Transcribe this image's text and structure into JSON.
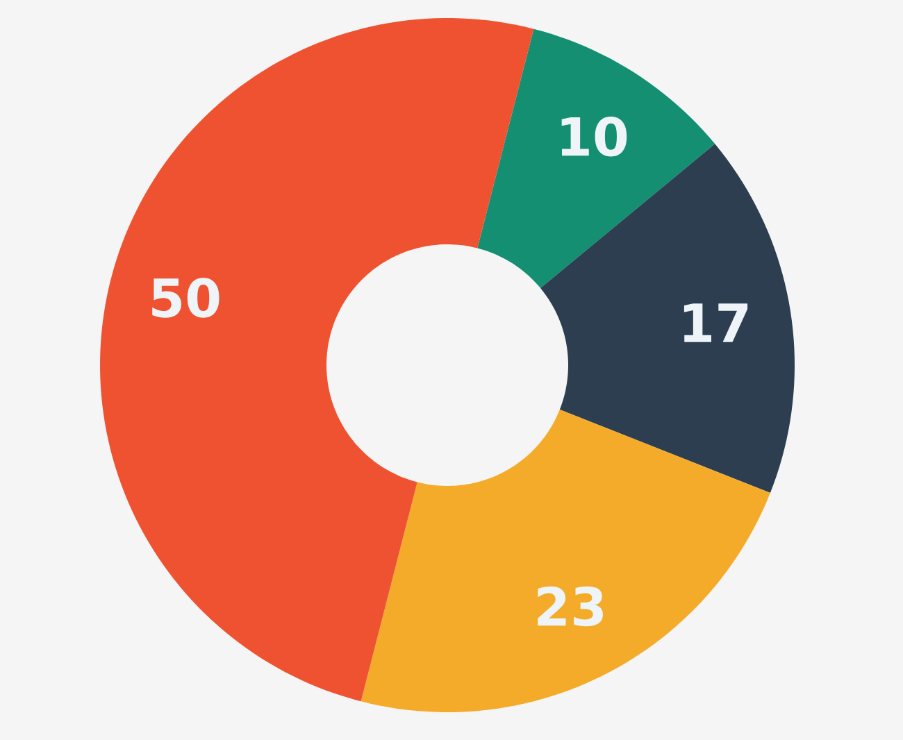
{
  "chart_data": {
    "type": "donut",
    "categories": [
      null,
      null,
      null,
      null
    ],
    "values": [
      10,
      17,
      23,
      50
    ],
    "colors": [
      "#148f72",
      "#2c3e50",
      "#f5ab2a",
      "#ef5230"
    ],
    "data_labels": true
  }
}
